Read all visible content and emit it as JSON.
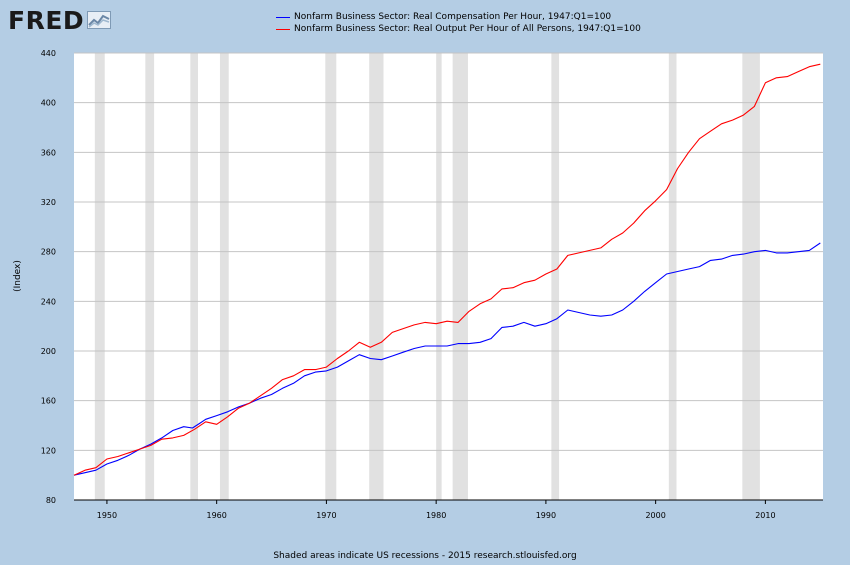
{
  "logo": {
    "text": "FRED",
    "icon": "chart-line-icon"
  },
  "footer": "Shaded areas indicate US recessions - 2015 research.stlouisfed.org",
  "chart_data": {
    "type": "line",
    "title": "",
    "xlabel": "",
    "ylabel": "(Index)",
    "xlim": [
      1947,
      2015.25
    ],
    "ylim": [
      80,
      440
    ],
    "yticks": [
      80,
      120,
      160,
      200,
      240,
      280,
      320,
      360,
      400,
      440
    ],
    "xticks": [
      1950,
      1960,
      1970,
      1980,
      1990,
      2000,
      2010
    ],
    "grid": true,
    "legend_position": "top",
    "recessions": [
      [
        1948.9,
        1949.8
      ],
      [
        1953.5,
        1954.3
      ],
      [
        1957.6,
        1958.3
      ],
      [
        1960.3,
        1961.1
      ],
      [
        1969.9,
        1970.9
      ],
      [
        1973.9,
        1975.2
      ],
      [
        1980.0,
        1980.5
      ],
      [
        1981.5,
        1982.9
      ],
      [
        1990.5,
        1991.2
      ],
      [
        2001.2,
        2001.9
      ],
      [
        2007.9,
        2009.5
      ]
    ],
    "series": [
      {
        "name": "Nonfarm Business Sector: Real Compensation Per Hour, 1947:Q1=100",
        "color": "#0000ff",
        "points": [
          [
            1947.0,
            100
          ],
          [
            1948.0,
            102
          ],
          [
            1949.0,
            104
          ],
          [
            1950.0,
            109
          ],
          [
            1951.0,
            112
          ],
          [
            1952.0,
            116
          ],
          [
            1953.0,
            121
          ],
          [
            1954.0,
            125
          ],
          [
            1955.0,
            130
          ],
          [
            1956.0,
            136
          ],
          [
            1957.0,
            139
          ],
          [
            1957.8,
            138
          ],
          [
            1958.5,
            142
          ],
          [
            1959.0,
            145
          ],
          [
            1960.0,
            148
          ],
          [
            1961.0,
            151
          ],
          [
            1962.0,
            155
          ],
          [
            1963.0,
            158
          ],
          [
            1964.0,
            162
          ],
          [
            1965.0,
            165
          ],
          [
            1966.0,
            170
          ],
          [
            1967.0,
            174
          ],
          [
            1968.0,
            180
          ],
          [
            1969.0,
            183
          ],
          [
            1970.0,
            184
          ],
          [
            1971.0,
            187
          ],
          [
            1972.0,
            192
          ],
          [
            1973.0,
            197
          ],
          [
            1974.0,
            194
          ],
          [
            1975.0,
            193
          ],
          [
            1976.0,
            196
          ],
          [
            1977.0,
            199
          ],
          [
            1978.0,
            202
          ],
          [
            1979.0,
            204
          ],
          [
            1980.0,
            204
          ],
          [
            1981.0,
            204
          ],
          [
            1982.0,
            206
          ],
          [
            1983.0,
            206
          ],
          [
            1984.0,
            207
          ],
          [
            1985.0,
            210
          ],
          [
            1986.0,
            219
          ],
          [
            1987.0,
            220
          ],
          [
            1988.0,
            223
          ],
          [
            1989.0,
            220
          ],
          [
            1990.0,
            222
          ],
          [
            1991.0,
            226
          ],
          [
            1992.0,
            233
          ],
          [
            1993.0,
            231
          ],
          [
            1994.0,
            229
          ],
          [
            1995.0,
            228
          ],
          [
            1996.0,
            229
          ],
          [
            1997.0,
            233
          ],
          [
            1998.0,
            240
          ],
          [
            1999.0,
            248
          ],
          [
            2000.0,
            255
          ],
          [
            2001.0,
            262
          ],
          [
            2002.0,
            264
          ],
          [
            2003.0,
            266
          ],
          [
            2004.0,
            268
          ],
          [
            2005.0,
            273
          ],
          [
            2006.0,
            274
          ],
          [
            2007.0,
            277
          ],
          [
            2008.0,
            278
          ],
          [
            2009.0,
            280
          ],
          [
            2010.0,
            281
          ],
          [
            2011.0,
            279
          ],
          [
            2012.0,
            279
          ],
          [
            2013.0,
            280
          ],
          [
            2014.0,
            281
          ],
          [
            2015.0,
            287
          ]
        ]
      },
      {
        "name": "Nonfarm Business Sector: Real Output Per Hour of All Persons, 1947:Q1=100",
        "color": "#ff0000",
        "points": [
          [
            1947.0,
            100
          ],
          [
            1948.0,
            104
          ],
          [
            1949.0,
            106
          ],
          [
            1950.0,
            113
          ],
          [
            1951.0,
            115
          ],
          [
            1952.0,
            118
          ],
          [
            1953.0,
            121
          ],
          [
            1954.0,
            124
          ],
          [
            1955.0,
            129
          ],
          [
            1956.0,
            130
          ],
          [
            1957.0,
            132
          ],
          [
            1958.0,
            137
          ],
          [
            1959.0,
            143
          ],
          [
            1960.0,
            141
          ],
          [
            1961.0,
            147
          ],
          [
            1962.0,
            154
          ],
          [
            1963.0,
            158
          ],
          [
            1964.0,
            164
          ],
          [
            1965.0,
            170
          ],
          [
            1966.0,
            177
          ],
          [
            1967.0,
            180
          ],
          [
            1968.0,
            185
          ],
          [
            1969.0,
            185
          ],
          [
            1970.0,
            187
          ],
          [
            1971.0,
            194
          ],
          [
            1972.0,
            200
          ],
          [
            1973.0,
            207
          ],
          [
            1974.0,
            203
          ],
          [
            1975.0,
            207
          ],
          [
            1976.0,
            215
          ],
          [
            1977.0,
            218
          ],
          [
            1978.0,
            221
          ],
          [
            1979.0,
            223
          ],
          [
            1980.0,
            222
          ],
          [
            1981.0,
            224
          ],
          [
            1982.0,
            223
          ],
          [
            1983.0,
            232
          ],
          [
            1984.0,
            238
          ],
          [
            1985.0,
            242
          ],
          [
            1986.0,
            250
          ],
          [
            1987.0,
            251
          ],
          [
            1988.0,
            255
          ],
          [
            1989.0,
            257
          ],
          [
            1990.0,
            262
          ],
          [
            1991.0,
            266
          ],
          [
            1992.0,
            277
          ],
          [
            1993.0,
            279
          ],
          [
            1994.0,
            281
          ],
          [
            1995.0,
            283
          ],
          [
            1996.0,
            290
          ],
          [
            1997.0,
            295
          ],
          [
            1998.0,
            303
          ],
          [
            1999.0,
            313
          ],
          [
            2000.0,
            321
          ],
          [
            2001.0,
            330
          ],
          [
            2002.0,
            347
          ],
          [
            2003.0,
            360
          ],
          [
            2004.0,
            371
          ],
          [
            2005.0,
            377
          ],
          [
            2006.0,
            383
          ],
          [
            2007.0,
            386
          ],
          [
            2008.0,
            390
          ],
          [
            2009.0,
            397
          ],
          [
            2010.0,
            416
          ],
          [
            2011.0,
            420
          ],
          [
            2012.0,
            421
          ],
          [
            2013.0,
            425
          ],
          [
            2014.0,
            429
          ],
          [
            2015.0,
            431
          ]
        ]
      }
    ]
  }
}
